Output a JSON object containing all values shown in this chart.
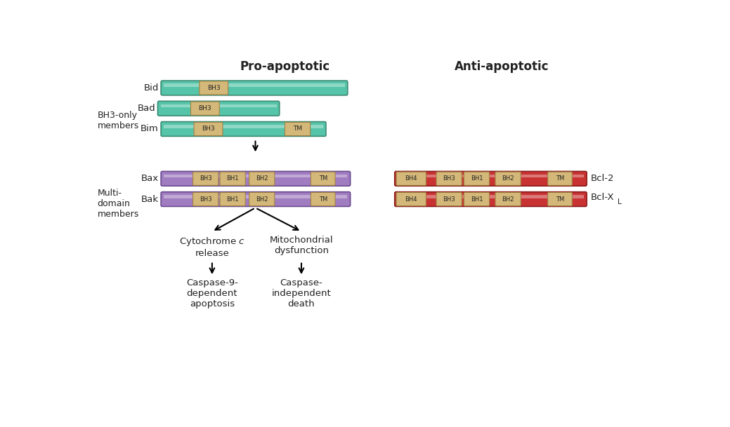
{
  "title_pro": "Pro-apoptotic",
  "title_anti": "Anti-apoptotic",
  "bg_color": "#ffffff",
  "teal_color": "#56c4a8",
  "teal_border": "#3a8a72",
  "purple_color": "#a07cc0",
  "purple_border": "#6a4a90",
  "red_color": "#c83232",
  "red_border": "#8a1a1a",
  "domain_fill": "#d4b87a",
  "domain_border": "#a08040",
  "text_color": "#222222",
  "bar_height": 0.22,
  "bar_stripe_alpha": 0.35,
  "fig_w": 10.39,
  "fig_h": 6.09,
  "xlim": [
    0,
    10.39
  ],
  "ylim": [
    0,
    6.09
  ]
}
